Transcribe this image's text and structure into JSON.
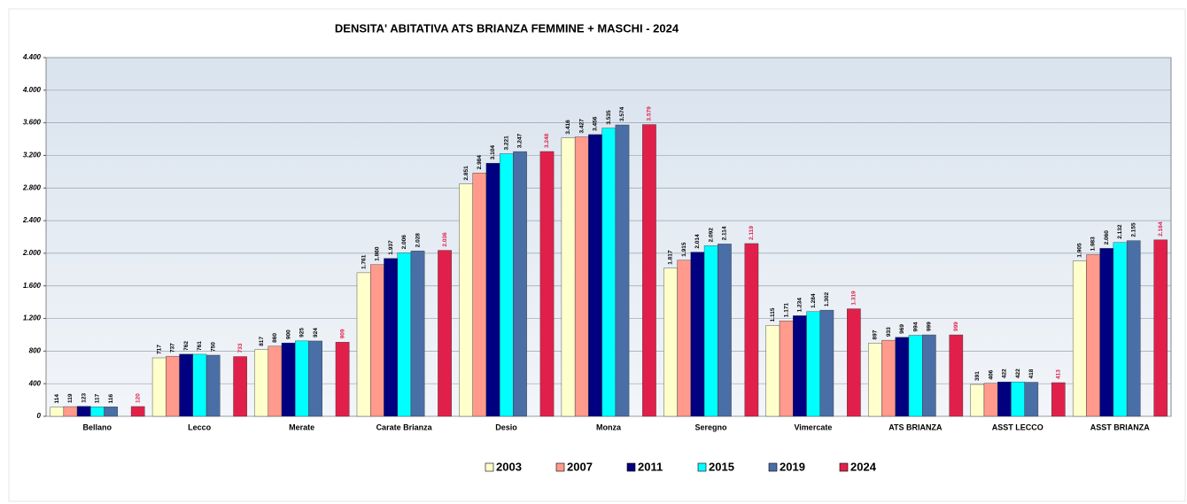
{
  "chart_data": {
    "type": "bar",
    "title": "DENSITA' ABITATIVA ATS BRIANZA  FEMMINE +  MASCHI - 2024",
    "categories": [
      "Bellano",
      "Lecco",
      "Merate",
      "Carate Brianza",
      "Desio",
      "Monza",
      "Seregno",
      "Vimercate",
      "ATS BRIANZA",
      "ASST LECCO",
      "ASST BRIANZA"
    ],
    "series": [
      {
        "name": "2003",
        "color": "#ffffcc",
        "label_color": "#000000",
        "values": [
          114,
          717,
          817,
          1761,
          2851,
          3416,
          1817,
          1115,
          897,
          391,
          1905
        ],
        "value_labels": [
          "114",
          "717",
          "817",
          "1.761",
          "2.851",
          "3.416",
          "1.817",
          "1.115",
          "897",
          "391",
          "1.905"
        ]
      },
      {
        "name": "2007",
        "color": "#ff9a8c",
        "label_color": "#000000",
        "values": [
          119,
          737,
          860,
          1860,
          2984,
          3427,
          1915,
          1171,
          933,
          406,
          1983
        ],
        "value_labels": [
          "119",
          "737",
          "860",
          "1.860",
          "2.984",
          "3.427",
          "1.915",
          "1.171",
          "933",
          "406",
          "1.983"
        ]
      },
      {
        "name": "2011",
        "color": "#000080",
        "label_color": "#000000",
        "values": [
          123,
          762,
          900,
          1937,
          3104,
          3456,
          2014,
          1234,
          969,
          422,
          2060
        ],
        "value_labels": [
          "123",
          "762",
          "900",
          "1.937",
          "3.104",
          "3.456",
          "2.014",
          "1.234",
          "969",
          "422",
          "2.060"
        ]
      },
      {
        "name": "2015",
        "color": "#00ffff",
        "label_color": "#000000",
        "values": [
          117,
          761,
          925,
          2006,
          3221,
          3535,
          2092,
          1284,
          994,
          422,
          2132
        ],
        "value_labels": [
          "117",
          "761",
          "925",
          "2.006",
          "3.221",
          "3.535",
          "2.092",
          "1.284",
          "994",
          "422",
          "2.132"
        ]
      },
      {
        "name": "2019",
        "color": "#4a6ea6",
        "label_color": "#000000",
        "values": [
          116,
          750,
          924,
          2028,
          3247,
          3574,
          2114,
          1302,
          999,
          418,
          2155
        ],
        "value_labels": [
          "116",
          "750",
          "924",
          "2.028",
          "3.247",
          "3.574",
          "2.114",
          "1.302",
          "999",
          "418",
          "2.155"
        ]
      },
      {
        "name": "2024",
        "color": "#e0204a",
        "label_color": "#e0204a",
        "values": [
          120,
          733,
          909,
          2036,
          3248,
          3579,
          2119,
          1319,
          999,
          413,
          2164
        ],
        "value_labels": [
          "120",
          "733",
          "909",
          "2.036",
          "3.248",
          "3.579",
          "2.119",
          "1.319",
          "999",
          "413",
          "2.164"
        ]
      }
    ],
    "ylim": [
      0,
      4400
    ],
    "yticks": [
      0,
      400,
      800,
      {
        "value": 1200,
        "label": "1.200"
      },
      {
        "value": 1600,
        "label": "1.600"
      },
      {
        "value": 2000,
        "label": "2.000"
      },
      {
        "value": 2400,
        "label": "2.400"
      },
      {
        "value": 2800,
        "label": "2.800"
      },
      {
        "value": 3200,
        "label": "3.200"
      },
      {
        "value": 3600,
        "label": "3.600"
      },
      {
        "value": 4000,
        "label": "4.000"
      },
      {
        "value": 4400,
        "label": "4.400"
      }
    ],
    "grid": true
  }
}
